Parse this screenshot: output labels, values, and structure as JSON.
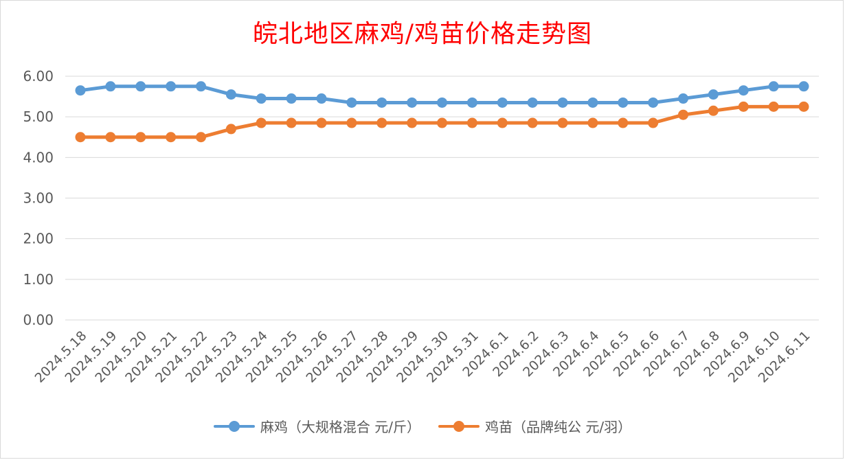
{
  "title": "皖北地区麻鸡/鸡苗价格走势图",
  "colors": {
    "series1": "#5b9bd5",
    "series2": "#ed7d31",
    "grid": "#d9d9d9",
    "axis_text": "#595959",
    "title": "#ff0000"
  },
  "chart_data": {
    "type": "line",
    "title": "皖北地区麻鸡/鸡苗价格走势图",
    "categories": [
      "2024.5.18",
      "2024.5.19",
      "2024.5.20",
      "2024.5.21",
      "2024.5.22",
      "2024.5.23",
      "2024.5.24",
      "2024.5.25",
      "2024.5.26",
      "2024.5.27",
      "2024.5.28",
      "2024.5.29",
      "2024.5.30",
      "2024.5.31",
      "2024.6.1",
      "2024.6.2",
      "2024.6.3",
      "2024.6.4",
      "2024.6.5",
      "2024.6.6",
      "2024.6.7",
      "2024.6.8",
      "2024.6.9",
      "2024.6.10",
      "2024.6.11"
    ],
    "series": [
      {
        "name": "麻鸡（大规格混合 元/斤）",
        "color": "#5b9bd5",
        "values": [
          5.65,
          5.75,
          5.75,
          5.75,
          5.75,
          5.55,
          5.45,
          5.45,
          5.45,
          5.35,
          5.35,
          5.35,
          5.35,
          5.35,
          5.35,
          5.35,
          5.35,
          5.35,
          5.35,
          5.35,
          5.45,
          5.55,
          5.65,
          5.75,
          5.75
        ]
      },
      {
        "name": "鸡苗（品牌纯公 元/羽）",
        "color": "#ed7d31",
        "values": [
          4.5,
          4.5,
          4.5,
          4.5,
          4.5,
          4.7,
          4.85,
          4.85,
          4.85,
          4.85,
          4.85,
          4.85,
          4.85,
          4.85,
          4.85,
          4.85,
          4.85,
          4.85,
          4.85,
          4.85,
          5.05,
          5.15,
          5.25,
          5.25,
          5.25
        ]
      }
    ],
    "yticks": [
      "0.00",
      "1.00",
      "2.00",
      "3.00",
      "4.00",
      "5.00",
      "6.00"
    ],
    "ylim": [
      0,
      6
    ],
    "grid": true,
    "legend_position": "bottom"
  }
}
